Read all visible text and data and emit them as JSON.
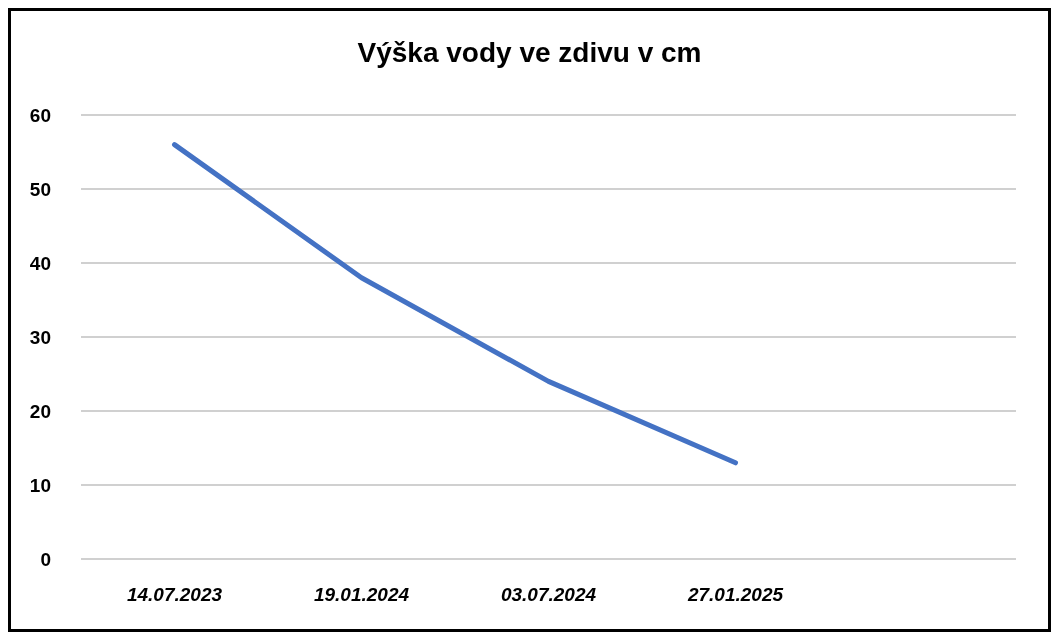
{
  "chart_data": {
    "type": "line",
    "title": "Výška vody ve zdivu v cm",
    "categories": [
      "14.07.2023",
      "19.01.2024",
      "03.07.2024",
      "27.01.2025",
      null
    ],
    "series": [
      {
        "color": "#4472c4",
        "values": [
          56,
          38,
          24,
          13,
          null
        ]
      }
    ],
    "ylim": [
      0,
      60
    ],
    "yticks": [
      0,
      10,
      20,
      30,
      40,
      50,
      60
    ],
    "grid": "y",
    "marker": "none",
    "line_style": "solid"
  }
}
